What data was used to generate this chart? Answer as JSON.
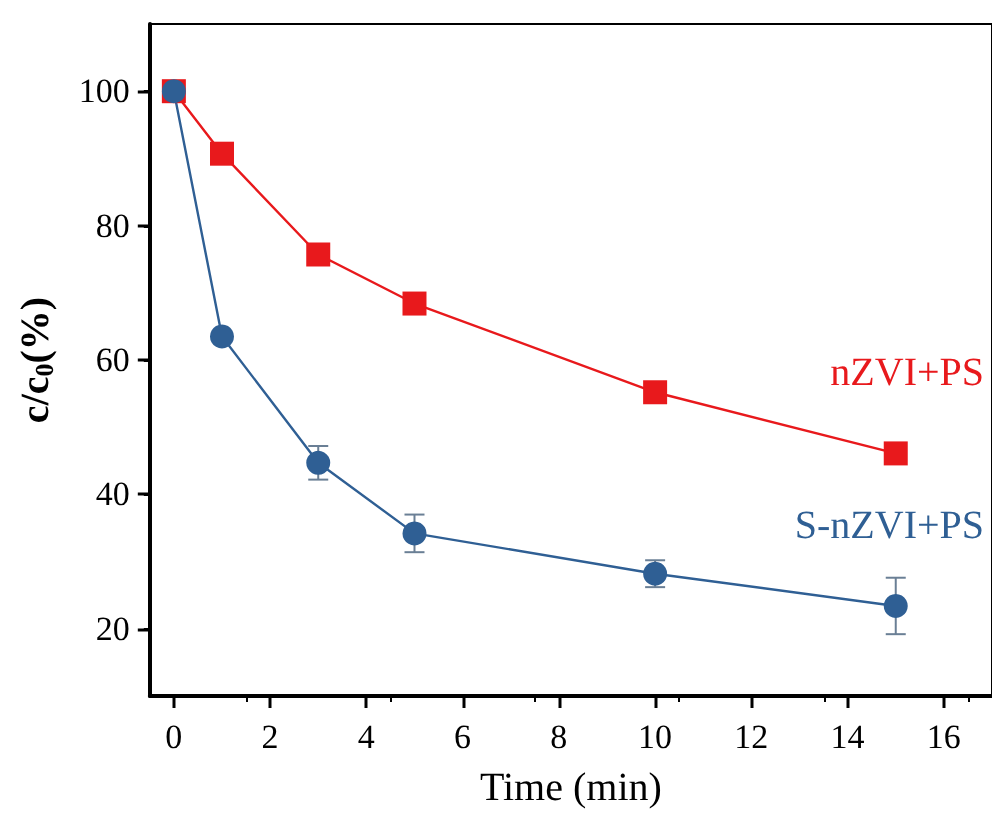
{
  "chart_data": {
    "type": "line",
    "xlabel": "Time (min)",
    "ylabel": "c/c$_{0}$(%)",
    "xlim": [
      -0.5,
      17
    ],
    "xticks": [
      0,
      2,
      4,
      6,
      8,
      10,
      12,
      14,
      16
    ],
    "ylim": [
      10,
      110
    ],
    "yticks": [
      20,
      40,
      60,
      80,
      100
    ],
    "grid": false,
    "legend": false,
    "series": [
      {
        "name": "nZVI+PS",
        "color": "#e8191c",
        "marker": "square",
        "x": [
          0,
          1,
          3,
          5,
          10,
          15
        ],
        "values": [
          100,
          90.7,
          75.7,
          68.4,
          55.2,
          46.1
        ]
      },
      {
        "name": "S-nZVI+PS",
        "color": "#2f5f94",
        "marker": "circle",
        "x": [
          0,
          1,
          3,
          5,
          10,
          15
        ],
        "values": [
          100,
          63.5,
          44.7,
          34.2,
          28.2,
          23.4
        ],
        "errors": [
          null,
          null,
          2.5,
          2.8,
          2,
          4.2
        ]
      }
    ]
  }
}
